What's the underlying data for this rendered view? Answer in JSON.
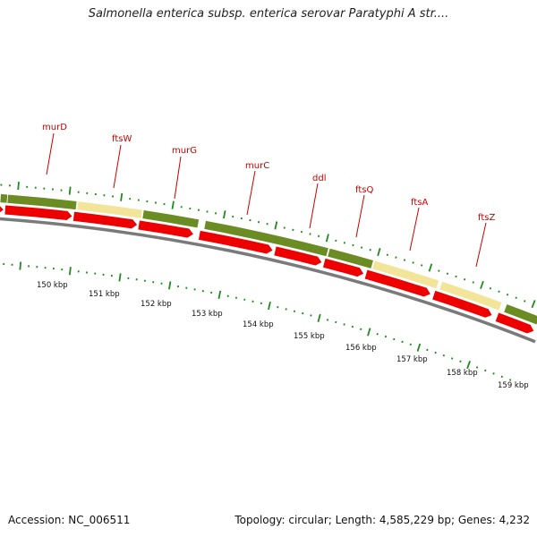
{
  "title": "Salmonella enterica subsp. enterica serovar Paratyphi A str....",
  "footer": {
    "accession": "Accession: NC_006511",
    "summary": "Topology: circular; Length: 4,585,229 bp; Genes: 4,232"
  },
  "colors": {
    "gene_green": "#6b8c23",
    "gene_yellow": "#f2e59a",
    "cds_red": "#ee0000",
    "backbone": "#7a7a7a",
    "tick": "#1f8a1f",
    "label": "#cc0000"
  },
  "genes": [
    {
      "name": "murD",
      "color": "green"
    },
    {
      "name": "ftsW",
      "color": "yellow"
    },
    {
      "name": "murG",
      "color": "green"
    },
    {
      "name": "murC",
      "color": "green"
    },
    {
      "name": "ddl",
      "color": "green"
    },
    {
      "name": "ftsQ",
      "color": "green"
    },
    {
      "name": "ftsA",
      "color": "yellow"
    },
    {
      "name": "ftsZ",
      "color": "yellow"
    }
  ],
  "kbp_labels": [
    "150 kbp",
    "151 kbp",
    "152 kbp",
    "153 kbp",
    "154 kbp",
    "155 kbp",
    "156 kbp",
    "157 kbp",
    "158 kbp",
    "159 kbp"
  ]
}
